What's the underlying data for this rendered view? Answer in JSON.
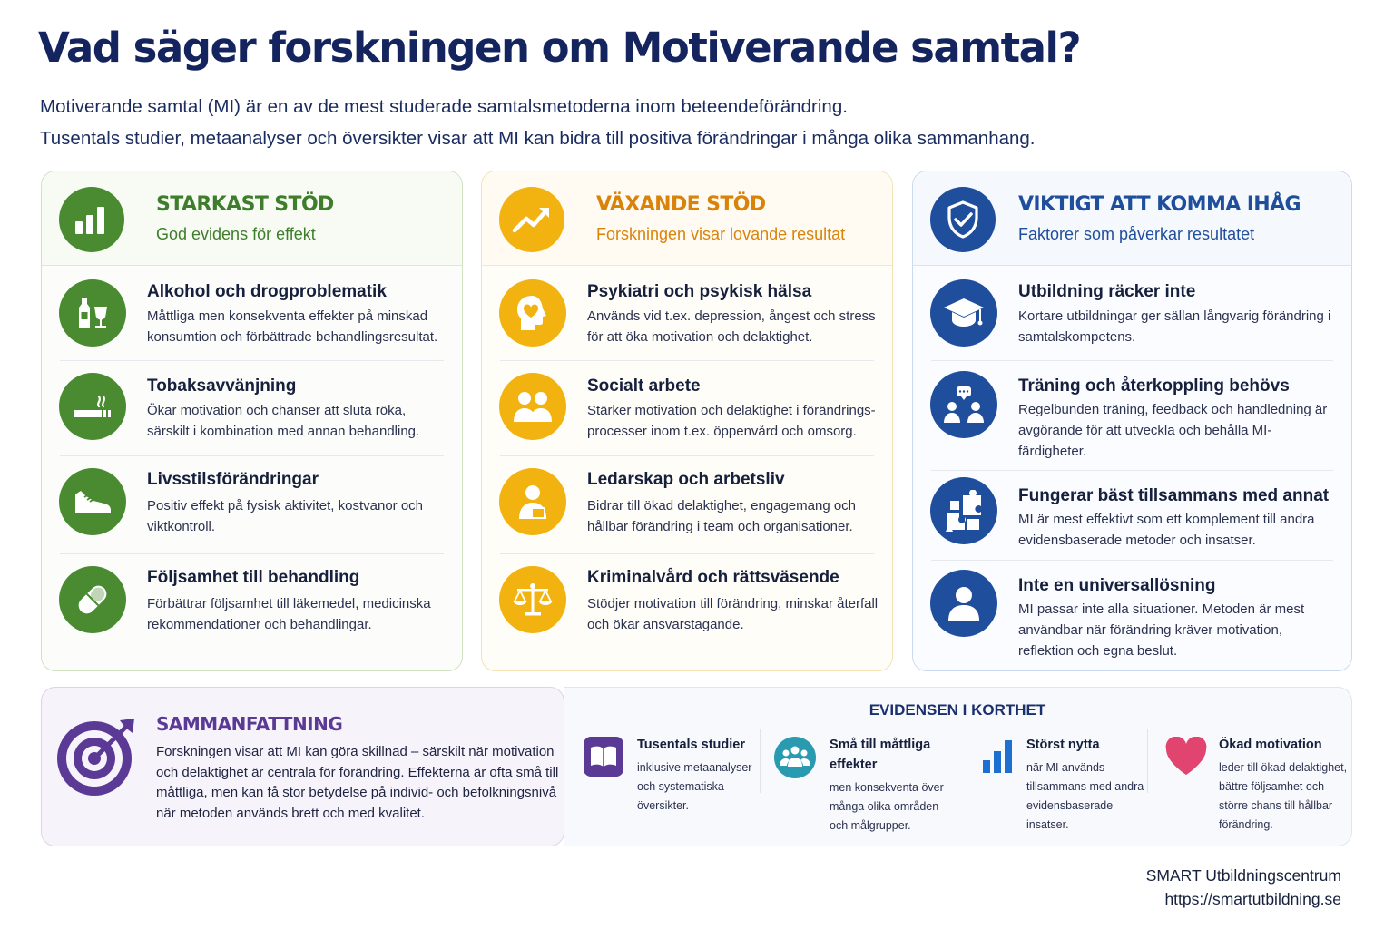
{
  "title": "Vad säger forskningen om Motiverande samtal?",
  "intro": {
    "line1": "Motiverande samtal (MI) är en av de mest studerade samtalsmetoderna inom beteendeförändring.",
    "line2": "Tusentals studier, metaanalyser och översikter visar att MI kan bidra till positiva förändringar i många olika sammanhang."
  },
  "columns": {
    "strong": {
      "title": "STARKAST STÖD",
      "subtitle": "God evidens för effekt",
      "icon": "bar-chart-icon",
      "color": "#4a8a31",
      "items": [
        {
          "icon": "bottle-glass-icon",
          "title": "Alkohol och drogproblematik",
          "desc": "Måttliga men konsekventa effekter på minskad konsumtion och förbättrade behandlingsresultat."
        },
        {
          "icon": "cigarette-icon",
          "title": "Tobaksavvänjning",
          "desc": "Ökar motivation och chanser att sluta röka, särskilt i kombination med annan behandling."
        },
        {
          "icon": "sneaker-icon",
          "title": "Livsstilsförändringar",
          "desc": "Positiv effekt på fysisk aktivitet, kostvanor och viktkontroll."
        },
        {
          "icon": "pill-icon",
          "title": "Följsamhet till behandling",
          "desc": "Förbättrar följsamhet till läkemedel, medicinska rekommendationer och behandlingar."
        }
      ]
    },
    "growing": {
      "title": "VÄXANDE STÖD",
      "subtitle": "Forskningen visar lovande resultat",
      "icon": "trend-up-icon",
      "color": "#f2b20f",
      "items": [
        {
          "icon": "head-heart-icon",
          "title": "Psykiatri och psykisk hälsa",
          "desc": "Används vid t.ex. depression, ångest och stress för att öka motivation och delaktighet."
        },
        {
          "icon": "people-icon",
          "title": "Socialt arbete",
          "desc": "Stärker motivation och delaktighet i förändrings-processer inom t.ex. öppenvård och omsorg."
        },
        {
          "icon": "leader-icon",
          "title": "Ledarskap och arbetsliv",
          "desc": "Bidrar till ökad delaktighet, engagemang och hållbar förändring i team och organisationer."
        },
        {
          "icon": "scales-icon",
          "title": "Kriminalvård och rättsväsende",
          "desc": "Stödjer motivation till förändring, minskar återfall och ökar ansvarstagande."
        }
      ]
    },
    "remember": {
      "title": "VIKTIGT ATT KOMMA IHÅG",
      "subtitle": "Faktorer som påverkar resultatet",
      "icon": "shield-check-icon",
      "color": "#1f4e9c",
      "items": [
        {
          "icon": "graduation-cap-icon",
          "title": "Utbildning räcker inte",
          "desc": "Kortare utbildningar ger sällan långvarig förändring i samtalskompetens."
        },
        {
          "icon": "chat-group-icon",
          "title": "Träning och återkoppling behövs",
          "desc": "Regelbunden träning, feedback och handledning är avgörande för att utveckla och behålla MI-färdigheter."
        },
        {
          "icon": "puzzle-icon",
          "title": "Fungerar bäst tillsammans med annat",
          "desc": "MI är mest effektivt som ett komplement till andra evidensbaserade metoder och insatser."
        },
        {
          "icon": "person-icon",
          "title": "Inte en universallösning",
          "desc": "MI passar inte alla situationer. Metoden är mest användbar när förändring kräver motivation, reflektion och egna beslut."
        }
      ]
    }
  },
  "summary": {
    "title": "SAMMANFATTNING",
    "icon": "target-icon",
    "text": "Forskningen visar att MI kan göra skillnad – särskilt när motivation och delaktighet är centrala för förändring. Effekterna är ofta små till måttliga, men kan få stor betydelse på individ- och befolkningsnivå när metoden används brett och med kvalitet."
  },
  "evidence": {
    "title": "EVIDENSEN I KORTHET",
    "items": [
      {
        "icon": "book-icon",
        "title": "Tusentals studier",
        "text": "inklusive metaanalyser och systematiska översikter."
      },
      {
        "icon": "group-circle-icon",
        "title": "Små till måttliga effekter",
        "text": "men konsekventa över många olika områden och målgrupper."
      },
      {
        "icon": "bar-chart-icon",
        "title": "Störst nytta",
        "text": "när MI används tillsammans med andra evidensbaserade insatser."
      },
      {
        "icon": "heart-icon",
        "title": "Ökad motivation",
        "text": "leder till ökad delaktighet, bättre följsamhet och större chans till hållbar förändring."
      }
    ]
  },
  "footer": {
    "org": "SMART Utbildningscentrum",
    "url": "https://smartutbildning.se"
  }
}
